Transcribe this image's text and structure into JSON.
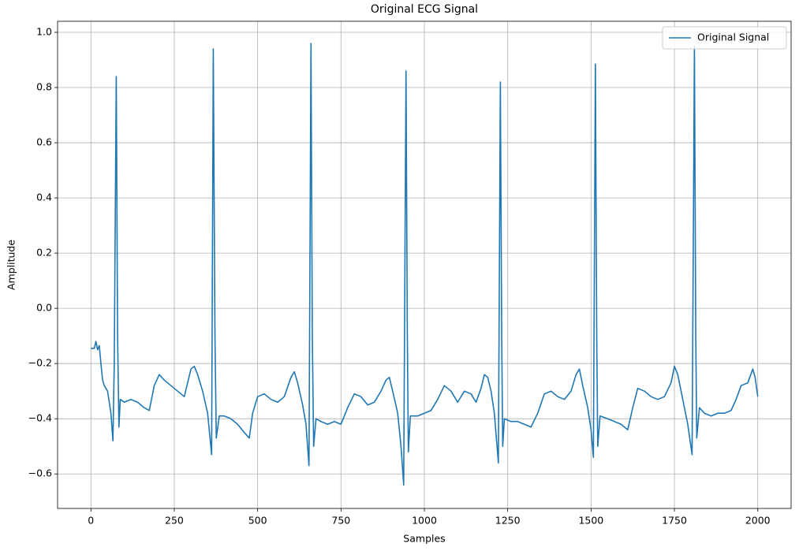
{
  "chart_data": {
    "type": "line",
    "title": "Original ECG Signal",
    "x_label": "Samples",
    "y_label": "Amplitude",
    "x": [
      0,
      10,
      15,
      20,
      25,
      30,
      35,
      40,
      50,
      60,
      66,
      70,
      76,
      80,
      84,
      88,
      100,
      120,
      140,
      160,
      175,
      190,
      205,
      220,
      240,
      260,
      280,
      300,
      310,
      320,
      335,
      350,
      358,
      362,
      367,
      372,
      376,
      385,
      400,
      420,
      440,
      460,
      475,
      485,
      500,
      520,
      540,
      560,
      580,
      600,
      610,
      620,
      635,
      645,
      654,
      660,
      664,
      668,
      675,
      690,
      710,
      730,
      750,
      770,
      790,
      810,
      830,
      850,
      870,
      885,
      895,
      905,
      920,
      930,
      938,
      945,
      949,
      952,
      958,
      980,
      1000,
      1020,
      1040,
      1060,
      1080,
      1100,
      1120,
      1140,
      1155,
      1170,
      1180,
      1190,
      1200,
      1210,
      1222,
      1228,
      1232,
      1235,
      1240,
      1260,
      1280,
      1300,
      1320,
      1340,
      1360,
      1380,
      1400,
      1420,
      1440,
      1455,
      1465,
      1475,
      1490,
      1500,
      1507,
      1513,
      1517,
      1520,
      1527,
      1550,
      1570,
      1590,
      1610,
      1625,
      1640,
      1660,
      1680,
      1700,
      1720,
      1740,
      1750,
      1760,
      1775,
      1790,
      1803,
      1810,
      1814,
      1817,
      1825,
      1840,
      1860,
      1880,
      1900,
      1920,
      1935,
      1950,
      1970,
      1985,
      1992,
      2000
    ],
    "series": [
      {
        "name": "Original Signal",
        "color": "#1f77b4",
        "values": [
          -0.145,
          -0.145,
          -0.12,
          -0.15,
          -0.135,
          -0.2,
          -0.26,
          -0.28,
          -0.3,
          -0.38,
          -0.48,
          -0.2,
          0.84,
          -0.1,
          -0.43,
          -0.33,
          -0.34,
          -0.33,
          -0.34,
          -0.36,
          -0.37,
          -0.28,
          -0.24,
          -0.26,
          -0.28,
          -0.3,
          -0.32,
          -0.22,
          -0.21,
          -0.24,
          -0.3,
          -0.38,
          -0.48,
          -0.53,
          0.94,
          -0.1,
          -0.47,
          -0.39,
          -0.39,
          -0.4,
          -0.42,
          -0.45,
          -0.47,
          -0.38,
          -0.32,
          -0.31,
          -0.33,
          -0.34,
          -0.32,
          -0.25,
          -0.23,
          -0.27,
          -0.35,
          -0.42,
          -0.57,
          0.96,
          -0.1,
          -0.5,
          -0.4,
          -0.41,
          -0.42,
          -0.41,
          -0.42,
          -0.36,
          -0.31,
          -0.32,
          -0.35,
          -0.34,
          -0.3,
          -0.26,
          -0.25,
          -0.3,
          -0.38,
          -0.5,
          -0.64,
          0.86,
          -0.1,
          -0.52,
          -0.39,
          -0.39,
          -0.38,
          -0.37,
          -0.33,
          -0.28,
          -0.3,
          -0.34,
          -0.3,
          -0.31,
          -0.34,
          -0.29,
          -0.24,
          -0.25,
          -0.3,
          -0.38,
          -0.56,
          0.82,
          -0.1,
          -0.5,
          -0.4,
          -0.41,
          -0.41,
          -0.42,
          -0.43,
          -0.38,
          -0.31,
          -0.3,
          -0.32,
          -0.33,
          -0.3,
          -0.24,
          -0.22,
          -0.28,
          -0.36,
          -0.44,
          -0.54,
          0.885,
          -0.1,
          -0.5,
          -0.39,
          -0.4,
          -0.41,
          -0.42,
          -0.44,
          -0.36,
          -0.29,
          -0.3,
          -0.32,
          -0.33,
          -0.32,
          -0.27,
          -0.21,
          -0.24,
          -0.33,
          -0.42,
          -0.53,
          0.95,
          -0.1,
          -0.47,
          -0.36,
          -0.38,
          -0.39,
          -0.38,
          -0.38,
          -0.37,
          -0.33,
          -0.28,
          -0.27,
          -0.22,
          -0.25,
          -0.32
        ]
      }
    ],
    "xlim": [
      -100,
      2100
    ],
    "ylim": [
      -0.725,
      1.04
    ],
    "xticks": [
      0,
      250,
      500,
      750,
      1000,
      1250,
      1500,
      1750,
      2000
    ],
    "yticks": [
      {
        "value": -0.6,
        "label": "−0.6"
      },
      {
        "value": -0.4,
        "label": "−0.4"
      },
      {
        "value": -0.2,
        "label": "−0.2"
      },
      {
        "value": 0,
        "label": "0.0"
      },
      0.2,
      0.4,
      0.6,
      0.8,
      {
        "value": 1,
        "label": "1.0"
      }
    ],
    "grid": true,
    "legend": "upper right"
  }
}
